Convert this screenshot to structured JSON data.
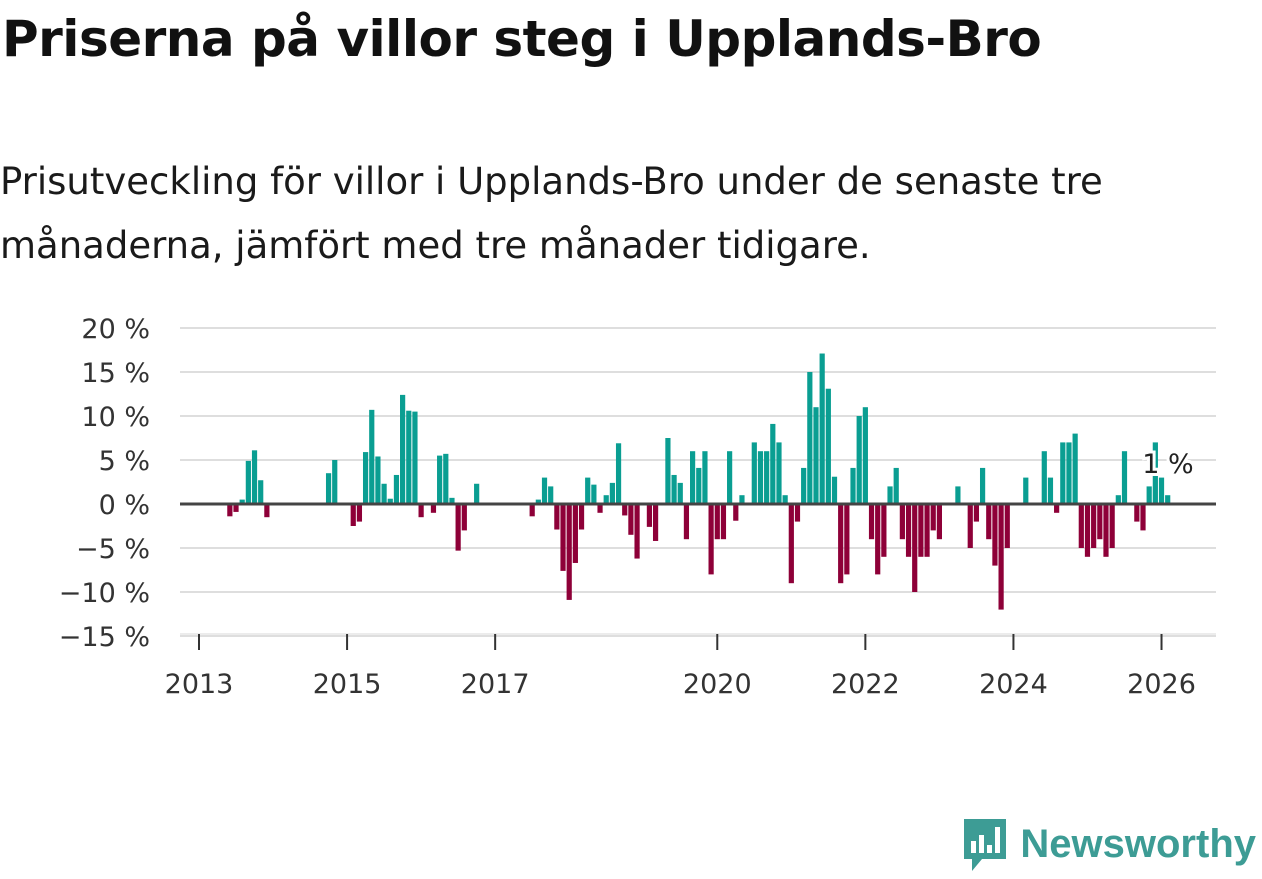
{
  "title": "Priserna på villor steg i Upplands-Bro",
  "subtitle": "Prisutveckling för villor i Upplands-Bro under de senaste tre månaderna, jämfört med tre månader tidigare.",
  "brand": "Newsworthy",
  "colors": {
    "positive": "#0a9e92",
    "negative": "#8e0038",
    "brand": "#3d9c95"
  },
  "chart_data": {
    "type": "bar",
    "title": "Priserna på villor steg i Upplands-Bro",
    "xlabel": "",
    "ylabel": "",
    "x_start": "2013-01",
    "x_step": "month",
    "ylim": [
      -15,
      20
    ],
    "y_ticks": [
      20,
      15,
      10,
      5,
      0,
      -5,
      -10,
      -15
    ],
    "y_tick_labels": [
      "20 %",
      "15 %",
      "10 %",
      "5 %",
      "0 %",
      "−5 %",
      "−10 %",
      "−15 %"
    ],
    "x_ticks": [
      2013,
      2015,
      2017,
      2020,
      2022,
      2024,
      2026
    ],
    "x_tick_labels": [
      "2013",
      "2015",
      "2017",
      "2020",
      "2022",
      "2024",
      "2026"
    ],
    "grid": true,
    "annotation": "1 %",
    "values": [
      0,
      0,
      0,
      0,
      0,
      -1.4,
      -0.9,
      0.5,
      4.9,
      6.1,
      2.7,
      -1.5,
      0,
      0,
      0,
      0,
      0,
      0,
      0,
      0,
      0,
      3.5,
      5,
      0,
      0,
      -2.5,
      -2,
      5.9,
      10.7,
      5.4,
      2.3,
      0.6,
      3.3,
      12.4,
      10.6,
      10.5,
      -1.5,
      0,
      -1,
      5.5,
      5.7,
      0.7,
      -5.3,
      -3,
      0,
      2.3,
      0,
      0,
      0,
      0,
      0,
      0,
      0,
      0,
      -1.4,
      0.5,
      3,
      2,
      -2.9,
      -7.6,
      -10.9,
      -6.7,
      -2.9,
      3,
      2.2,
      -1,
      1,
      2.4,
      6.9,
      -1.3,
      -3.5,
      -6.2,
      0,
      -2.6,
      -4.2,
      0,
      7.5,
      3.3,
      2.4,
      -4,
      6,
      4.1,
      6,
      -8,
      -4,
      -4,
      6,
      -1.9,
      1,
      0,
      7,
      6,
      6,
      9.1,
      7,
      1,
      -9,
      -2,
      4.1,
      15,
      11,
      17.1,
      13.1,
      3.1,
      -9,
      -8,
      4.1,
      10,
      11,
      -4,
      -8,
      -6,
      2,
      4.1,
      -4,
      -6,
      -10,
      -6,
      -6,
      -3,
      -4,
      0,
      0,
      2,
      0,
      -5,
      -2,
      4.1,
      -4,
      -7,
      -12,
      -5,
      0,
      0,
      3,
      0,
      0,
      6,
      3,
      -1,
      7,
      7,
      8,
      -5,
      -6,
      -5,
      -4,
      -6,
      -5,
      1,
      6,
      0,
      -2,
      -3,
      2,
      7,
      3,
      1
    ]
  }
}
